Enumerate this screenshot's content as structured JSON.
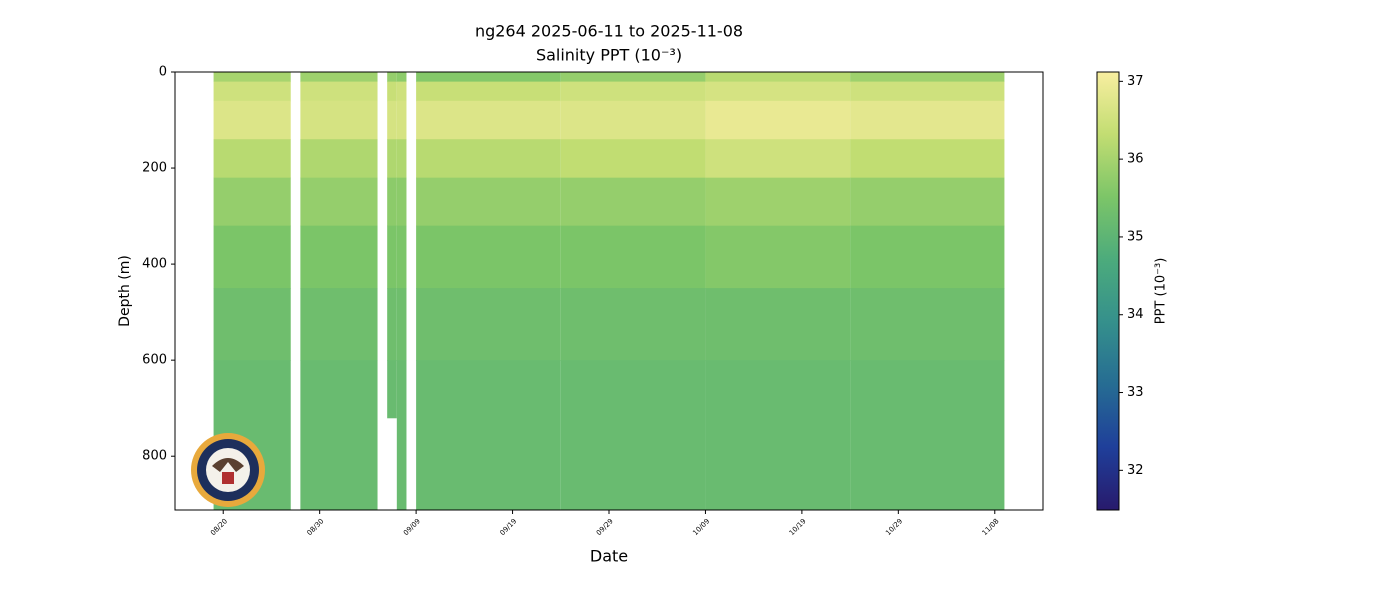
{
  "chart_data": {
    "type": "heatmap",
    "title": "ng264 2025-06-11 to 2025-11-08",
    "subtitle": "Salinity PPT (10⁻³)",
    "x_label": "Date",
    "y_label": "Depth (m)",
    "colorbar_label": "PPT (10⁻³)",
    "xlim": [
      "08/15",
      "11/13"
    ],
    "xticks": [
      "08/20",
      "08/30",
      "09/09",
      "09/19",
      "09/29",
      "10/09",
      "10/19",
      "10/29",
      "11/08"
    ],
    "ylim": [
      0,
      912
    ],
    "y_inverted": true,
    "yticks": [
      0,
      200,
      400,
      600,
      800
    ],
    "clim": [
      31.49,
      37.12
    ],
    "cticks": [
      32,
      33,
      34,
      35,
      36,
      37
    ],
    "cmap": [
      "#281a6c",
      "#1f3f9a",
      "#266c93",
      "#35908c",
      "#4cab7c",
      "#7cc568",
      "#c2dd72",
      "#f8eea0"
    ],
    "depth_bins": [
      0,
      20,
      60,
      140,
      220,
      320,
      450,
      600,
      912
    ],
    "columns": [
      {
        "start": "08/19",
        "end": "08/27",
        "values": [
          36.0,
          36.5,
          36.7,
          36.2,
          35.8,
          35.5,
          35.3,
          35.2
        ]
      },
      {
        "start": "08/28",
        "end": "09/05",
        "values": [
          35.9,
          36.5,
          36.6,
          36.1,
          35.8,
          35.5,
          35.3,
          35.2
        ]
      },
      {
        "start": "09/06",
        "end": "09/07",
        "max_depth": 720,
        "values": [
          35.8,
          36.4,
          36.6,
          36.1,
          35.7,
          35.5,
          35.3,
          35.2
        ]
      },
      {
        "start": "09/07",
        "end": "09/08",
        "values": [
          35.7,
          36.5,
          36.6,
          36.1,
          35.7,
          35.5,
          35.3,
          35.2
        ]
      },
      {
        "start": "09/09",
        "end": "09/24",
        "values": [
          35.6,
          36.4,
          36.7,
          36.2,
          35.8,
          35.5,
          35.3,
          35.2
        ]
      },
      {
        "start": "09/24",
        "end": "10/09",
        "values": [
          35.8,
          36.5,
          36.7,
          36.3,
          35.8,
          35.5,
          35.3,
          35.2
        ]
      },
      {
        "start": "10/09",
        "end": "10/24",
        "values": [
          36.2,
          36.6,
          36.9,
          36.5,
          35.9,
          35.6,
          35.3,
          35.2
        ]
      },
      {
        "start": "10/24",
        "end": "11/09",
        "values": [
          35.9,
          36.5,
          36.8,
          36.3,
          35.8,
          35.5,
          35.3,
          35.2
        ]
      }
    ]
  }
}
